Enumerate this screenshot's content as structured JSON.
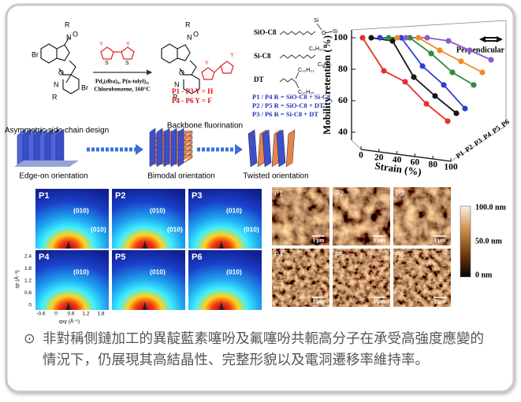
{
  "scheme": {
    "reactant_atoms": [
      "Br",
      "O",
      "O",
      "N",
      "R",
      "N",
      "R",
      "Br"
    ],
    "comonomer_atoms": [
      "Y",
      "Y",
      "S",
      "S"
    ],
    "reagents": [
      "Pd₂(dba)₃, P(o-tolyl)₃,",
      "Chlorobenzene, 160°C"
    ],
    "product_atoms": [
      "O",
      "O",
      "N",
      "R",
      "N",
      "R",
      "Y",
      "Y"
    ],
    "product_classes": [
      "P1 - P3 Y = H",
      "P4 - P6 Y = F"
    ],
    "side_chains": [
      "SiO-C8",
      "Si-C8",
      "DT"
    ],
    "side_chain_atoms": [
      "Si",
      "O",
      "Si",
      "C₈H₁₇",
      "C₈H₁₇",
      "C₁₀H₂₁",
      "C₁₂H₂₅"
    ],
    "combinations": [
      "P1 / P4 R = SiO-C8 + Si-C8",
      "P2 / P5 R = SiO-C8 + DT",
      "P3 / P6 R = Si-C8 + DT"
    ]
  },
  "orientation": {
    "steps": [
      "Asymmetric side chain design",
      "Backbone fluorination"
    ],
    "states": [
      "Edge-on orientation",
      "Bimodal orientation",
      "Twisted orientation"
    ]
  },
  "chart_data": {
    "type": "line3d",
    "ylabel": "Mobility retention (%)",
    "xlabel": "Strain (%)",
    "annotation": "Perpendicular",
    "x": [
      0,
      25,
      50,
      75,
      100
    ],
    "xlim": [
      0,
      100
    ],
    "xticks": [
      0,
      20,
      40,
      60,
      80,
      100
    ],
    "ylim": [
      35,
      105
    ],
    "yticks": [
      40,
      60,
      80,
      100
    ],
    "series": [
      {
        "name": "P1",
        "color": "#e3322b",
        "values": [
          100,
          79,
          72,
          58,
          47
        ]
      },
      {
        "name": "P2",
        "color": "#151515",
        "values": [
          100,
          98,
          75,
          63,
          52
        ]
      },
      {
        "name": "P3",
        "color": "#2c3fcf",
        "values": [
          100,
          100,
          82,
          70,
          55
        ]
      },
      {
        "name": "P4",
        "color": "#2f8c3b",
        "values": [
          100,
          100,
          90,
          78,
          70
        ]
      },
      {
        "name": "P5",
        "color": "#f08a24",
        "values": [
          100,
          100,
          92,
          85,
          78
        ]
      },
      {
        "name": "P6",
        "color": "#8a5cc8",
        "values": [
          100,
          100,
          98,
          92,
          86
        ]
      }
    ]
  },
  "giwaxs": {
    "panels": [
      "P1",
      "P2",
      "P3",
      "P4",
      "P5",
      "P6"
    ],
    "peak": "(010)",
    "yticks": [
      "2.4",
      "1.8",
      "1.2",
      "0.6",
      "0"
    ],
    "xticks": [
      "-0.6",
      "0",
      "0.6",
      "1.2",
      "1.8"
    ],
    "ylabel": "qz (Å⁻¹)",
    "xlabel": "qxy (Å⁻¹)"
  },
  "afm": {
    "panels": [
      "P1",
      "P2",
      "P3",
      "P4",
      "P5",
      "P6"
    ],
    "scale_bar": "1 μm",
    "colorbar": [
      "100.0 nm",
      "50.0 nm",
      "0 nm"
    ]
  },
  "caption": {
    "bullet": "⊙",
    "text": "非對稱側鏈加工的異靛藍素噻吩及氟噻吩共軛高分子在承受高強度應變的情況下，仍展現其高結晶性、完整形貌以及電洞遷移率維持率。"
  }
}
